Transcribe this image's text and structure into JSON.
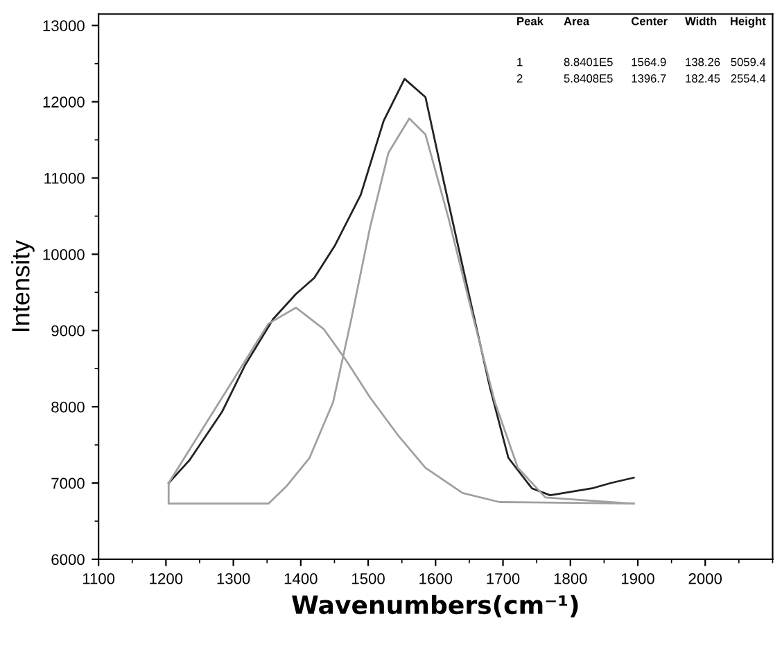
{
  "chart_data": {
    "type": "line",
    "xlabel": "Wavenumbers(cm⁻¹)",
    "ylabel": "Intensity",
    "xlim": [
      1100,
      2100
    ],
    "ylim": [
      6000,
      13150
    ],
    "xticks": [
      1100,
      1200,
      1300,
      1400,
      1500,
      1600,
      1700,
      1800,
      1900,
      2000
    ],
    "yticks": [
      6000,
      7000,
      8000,
      9000,
      10000,
      11000,
      12000,
      13000
    ],
    "grid": false,
    "legend": false,
    "marker": "none",
    "line_style": "solid",
    "series": [
      {
        "color": "#222222",
        "x": [
          1204,
          1235,
          1283,
          1317,
          1359,
          1393,
          1420,
          1451,
          1489,
          1523,
          1554,
          1585,
          1612,
          1647,
          1681,
          1708,
          1743,
          1770,
          1798,
          1832,
          1860,
          1894
        ],
        "values": [
          7000,
          7300,
          7930,
          8540,
          9150,
          9480,
          9690,
          10120,
          10780,
          11750,
          12300,
          12060,
          10960,
          9570,
          8240,
          7330,
          6930,
          6840,
          6880,
          6930,
          7000,
          7070
        ]
      },
      {
        "color": "#a0a0a0",
        "x": [
          1204,
          1204,
          1352,
          1393,
          1434,
          1468,
          1503,
          1544,
          1585,
          1640,
          1695,
          1894
        ],
        "values": [
          6730,
          7000,
          9090,
          9300,
          9020,
          8600,
          8120,
          7630,
          7200,
          6870,
          6750,
          6730
        ]
      },
      {
        "color": "#a0a0a0",
        "x": [
          1204,
          1352,
          1379,
          1413,
          1448,
          1475,
          1503,
          1530,
          1561,
          1585,
          1619,
          1653,
          1688,
          1722,
          1763,
          1894
        ],
        "values": [
          6730,
          6730,
          6960,
          7330,
          8060,
          9150,
          10360,
          11330,
          11780,
          11570,
          10480,
          9270,
          8060,
          7200,
          6810,
          6730
        ]
      }
    ],
    "annotations": [
      "Peak",
      "Area",
      "Center",
      "Width",
      "Height",
      "1",
      "8.8401E5",
      "1564.9",
      "138.26",
      "5059.4",
      "2",
      "5.8408E5",
      "1396.7",
      "182.45",
      "2554.4"
    ]
  }
}
